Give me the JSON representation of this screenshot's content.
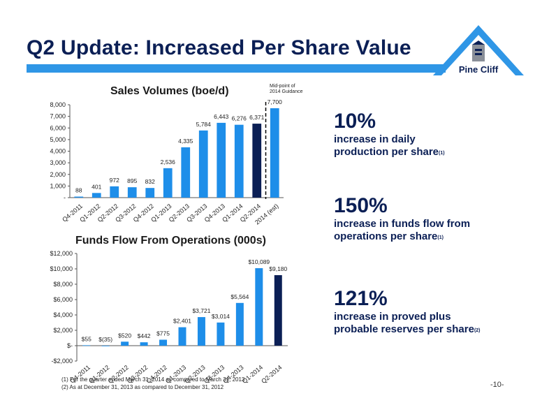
{
  "title": "Q2 Update: Increased Per Share Value",
  "logo": {
    "text": "Pine Cliff"
  },
  "colors": {
    "light_bar": "#1e8ee9",
    "dark_bar": "#0b1f55",
    "title": "#0b1f55",
    "accent": "#2f96e6"
  },
  "chart1": {
    "title": "Sales Volumes (boe/d)",
    "midpoint_label": [
      "Mid-point of",
      "2014 Guidance"
    ]
  },
  "chart2": {
    "title": "Funds Flow From Operations (000s)"
  },
  "stats": [
    {
      "value": "10%",
      "line1": "increase in daily",
      "line2": "production per share",
      "note": "(1)"
    },
    {
      "value": "150%",
      "line1": "increase in funds flow from",
      "line2": "operations per share",
      "note": "(1)"
    },
    {
      "value": "121%",
      "line1": "increase in proved plus",
      "line2": "probable reserves per share",
      "note": "(2)"
    }
  ],
  "footnotes": [
    "(1)   For the quarter ended March 31, 2014 as compared to March 31, 2013",
    "(2)   As at December 31, 2013 as compared to December 31, 2012"
  ],
  "page_number": "-10-",
  "chart_data": [
    {
      "type": "bar",
      "title": "Sales Volumes (boe/d)",
      "categories": [
        "Q4-2011",
        "Q1-2012",
        "Q2-2012",
        "Q3-2012",
        "Q4-2012",
        "Q1-2013",
        "Q2-2013",
        "Q3-2013",
        "Q4-2013",
        "Q1-2014",
        "Q2-2014",
        "2014 (est)"
      ],
      "values": [
        88,
        401,
        972,
        895,
        832,
        2536,
        4335,
        5784,
        6443,
        6276,
        6371,
        7700
      ],
      "data_labels": [
        "88",
        "401",
        "972",
        "895",
        "832",
        "2,536",
        "4,335",
        "5,784",
        "6,443",
        "6,276",
        "6,371",
        "7,700"
      ],
      "highlight": [
        10
      ],
      "ylim": [
        0,
        8000
      ],
      "yticks": [
        0,
        1000,
        2000,
        3000,
        4000,
        5000,
        6000,
        7000,
        8000
      ],
      "ytick_labels": [
        "-",
        "1,000",
        "2,000",
        "3,000",
        "4,000",
        "5,000",
        "6,000",
        "7,000",
        "8,000"
      ],
      "grid": false,
      "annotation": "Mid-point of 2014 Guidance"
    },
    {
      "type": "bar",
      "title": "Funds Flow From Operations (000s)",
      "categories": [
        "Q4-2011",
        "Q1-2012",
        "Q2-2012",
        "Q3-2012",
        "Q4-2012",
        "Q1-2013",
        "Q2-2013",
        "Q3-2013",
        "Q4-2013",
        "Q1-2014",
        "Q2-2014"
      ],
      "values": [
        55,
        -35,
        520,
        442,
        775,
        2401,
        3721,
        3014,
        5564,
        10089,
        9180
      ],
      "data_labels": [
        "$55",
        "$(35)",
        "$520",
        "$442",
        "$775",
        "$2,401",
        "$3,721",
        "$3,014",
        "$5,564",
        "$10,089",
        "$9,180"
      ],
      "highlight": [
        10
      ],
      "ylim": [
        -2000,
        12000
      ],
      "yticks": [
        -2000,
        0,
        2000,
        4000,
        6000,
        8000,
        10000,
        12000
      ],
      "ytick_labels": [
        "-$2,000",
        "$-",
        "$2,000",
        "$4,000",
        "$6,000",
        "$8,000",
        "$10,000",
        "$12,000"
      ],
      "grid": false
    }
  ]
}
